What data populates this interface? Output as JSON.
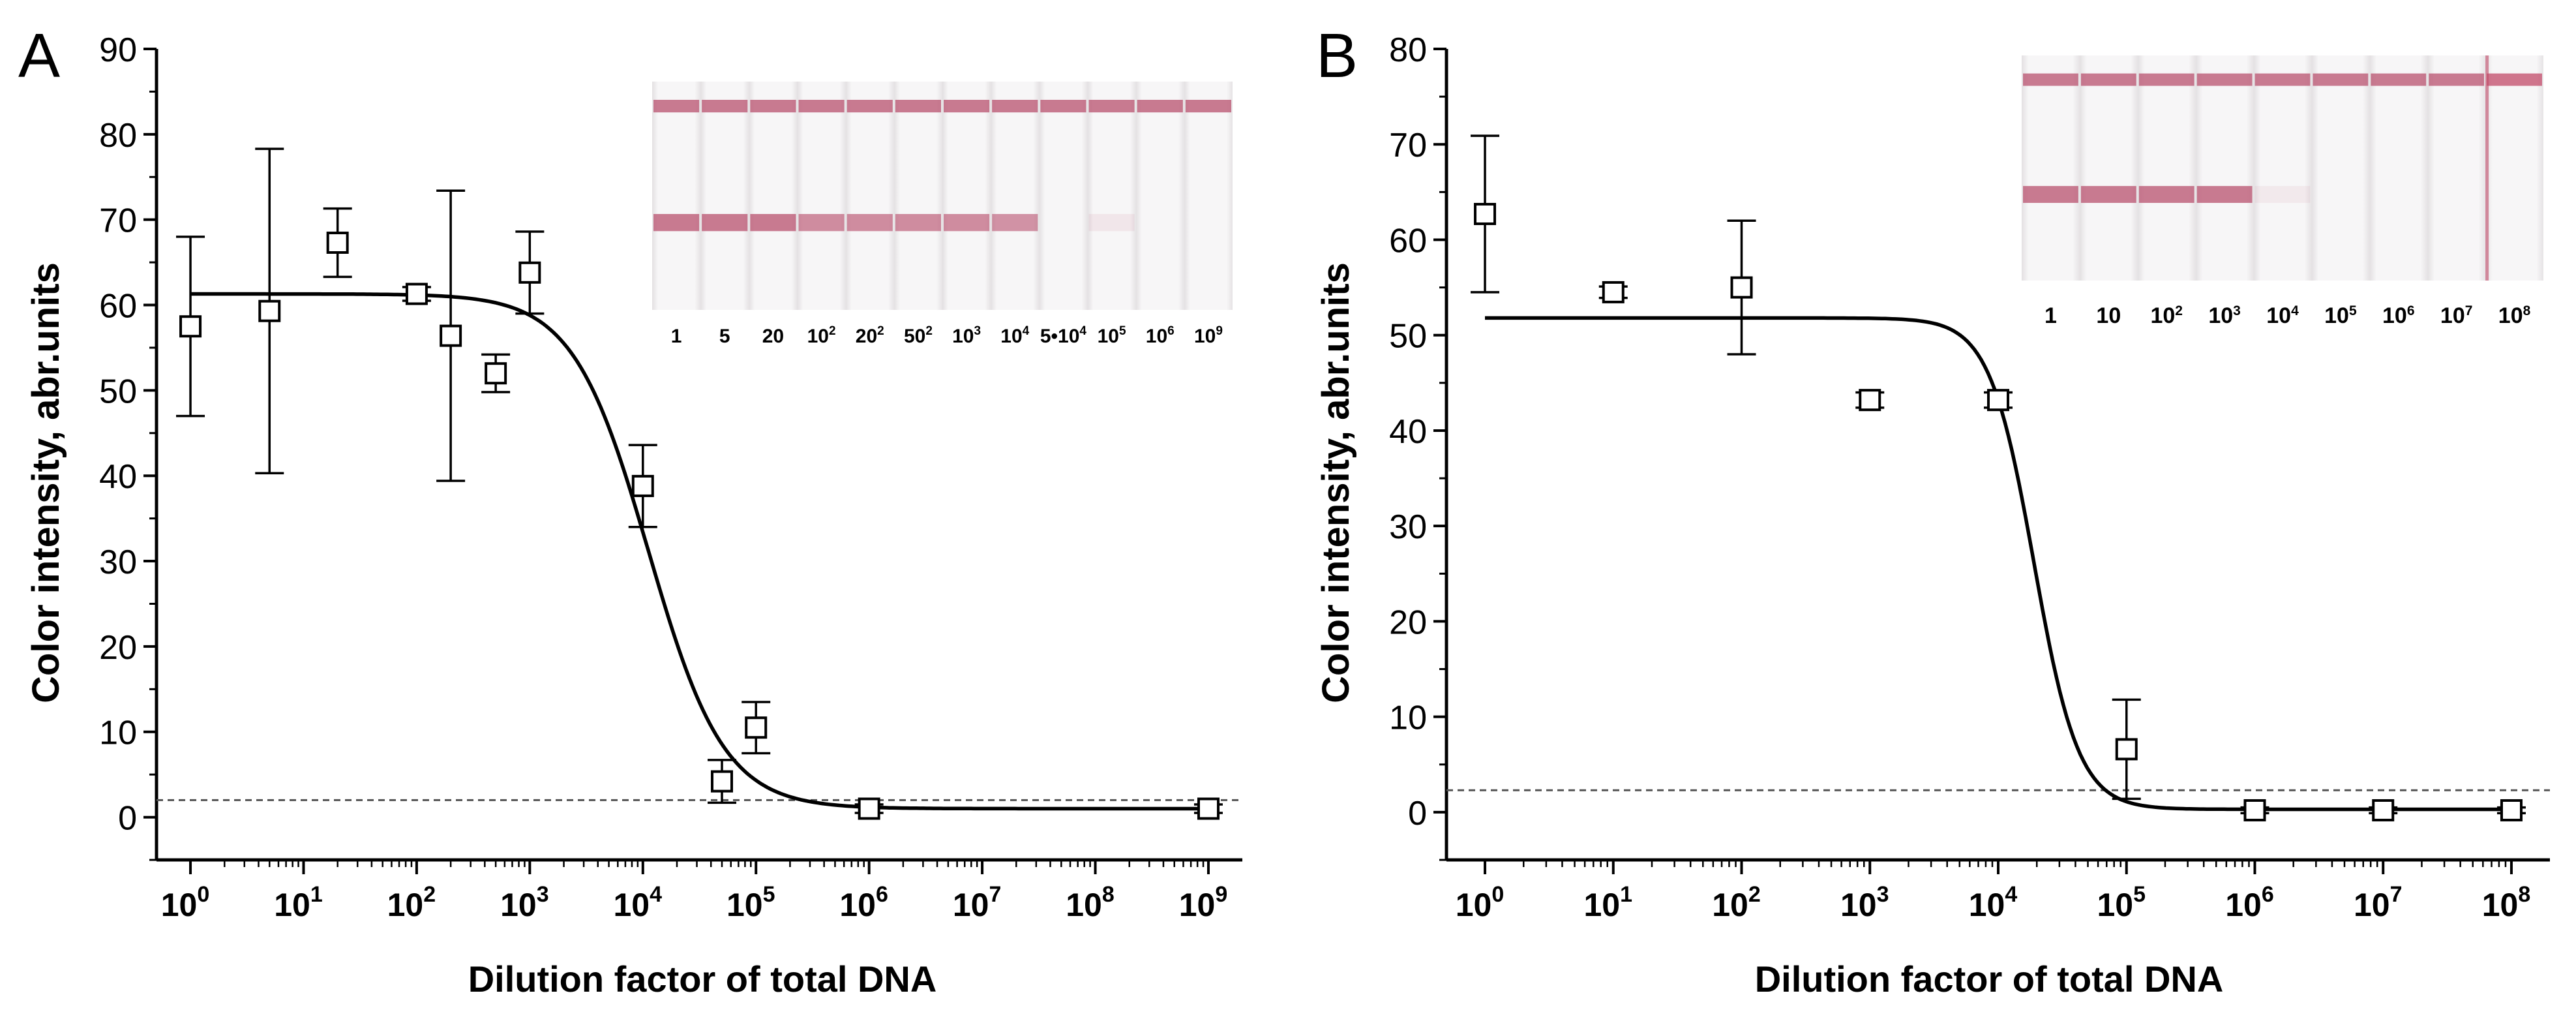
{
  "chart_data": [
    {
      "panel_label": "A",
      "type": "scatter",
      "title": "",
      "xlabel": "Dilution factor of total DNA",
      "ylabel": "Color intensity, abr.units",
      "x_scale": "log10",
      "xlim_log10": [
        -0.3,
        9.3
      ],
      "ylim": [
        -5,
        90
      ],
      "ytick_values": [
        0,
        10,
        20,
        30,
        40,
        50,
        60,
        70,
        80,
        90
      ],
      "ytick_labels": [
        "0",
        "10",
        "20",
        "30",
        "40",
        "50",
        "60",
        "70",
        "80",
        "90"
      ],
      "xtick_exponents": [
        0,
        1,
        2,
        3,
        4,
        5,
        6,
        7,
        8,
        9
      ],
      "xtick_base": "10",
      "points": [
        {
          "x": 1,
          "y": 57.5,
          "err": 10.5
        },
        {
          "x": 5,
          "y": 59.3,
          "err": 19.0
        },
        {
          "x": 20,
          "y": 67.3,
          "err": 4.0
        },
        {
          "x": 100,
          "y": 61.3,
          "err": 0.8
        },
        {
          "x": 200,
          "y": 56.4,
          "err": 17.0
        },
        {
          "x": 500,
          "y": 52.0,
          "err": 2.2
        },
        {
          "x": 1000,
          "y": 63.8,
          "err": 4.8
        },
        {
          "x": 10000,
          "y": 38.8,
          "err": 4.8
        },
        {
          "x": 50000,
          "y": 4.2,
          "err": 2.5
        },
        {
          "x": 100000,
          "y": 10.5,
          "err": 3.0
        },
        {
          "x": 1000000,
          "y": 1.0,
          "err": 0.5
        },
        {
          "x": 1000000000,
          "y": 1.0,
          "err": 0.5
        }
      ],
      "fit": {
        "top": 61.3,
        "bottom": 1.0,
        "log_ec50": 4.05,
        "slope": 1.3
      },
      "threshold": 2.0,
      "inset": {
        "lane_labels": [
          {
            "base": "1",
            "sup": ""
          },
          {
            "base": "5",
            "sup": ""
          },
          {
            "base": "20",
            "sup": ""
          },
          {
            "base": "10",
            "sup": "2"
          },
          {
            "base": "20",
            "sup": "2"
          },
          {
            "base": "50",
            "sup": "2"
          },
          {
            "base": "10",
            "sup": "3"
          },
          {
            "base": "10",
            "sup": "4"
          },
          {
            "base": "5•10",
            "sup": "4"
          },
          {
            "base": "10",
            "sup": "5"
          },
          {
            "base": "10",
            "sup": "6"
          },
          {
            "base": "10",
            "sup": "9"
          }
        ],
        "test_line_intensity": [
          1,
          1,
          1,
          0.85,
          0.85,
          0.85,
          0.85,
          0.8,
          0,
          0.12,
          0,
          0
        ],
        "control_line_intensity": [
          1,
          1,
          1,
          1,
          1,
          1,
          1,
          1,
          1,
          1,
          1,
          1
        ]
      }
    },
    {
      "panel_label": "B",
      "type": "scatter",
      "title": "",
      "xlabel": "Dilution factor of total DNA",
      "ylabel": "Color intensity, abr.units",
      "x_scale": "log10",
      "xlim_log10": [
        -0.3,
        8.3
      ],
      "ylim": [
        -5,
        80
      ],
      "ytick_values": [
        0,
        10,
        20,
        30,
        40,
        50,
        60,
        70,
        80
      ],
      "ytick_labels": [
        "0",
        "10",
        "20",
        "30",
        "40",
        "50",
        "60",
        "70",
        "80"
      ],
      "xtick_exponents": [
        0,
        1,
        2,
        3,
        4,
        5,
        6,
        7,
        8
      ],
      "xtick_base": "10",
      "points": [
        {
          "x": 1,
          "y": 62.7,
          "err": 8.2
        },
        {
          "x": 10,
          "y": 54.5,
          "err": 0.6
        },
        {
          "x": 100,
          "y": 55.0,
          "err": 7.0
        },
        {
          "x": 1000,
          "y": 43.2,
          "err": 0.8
        },
        {
          "x": 10000,
          "y": 43.2,
          "err": 0.8
        },
        {
          "x": 100000,
          "y": 6.6,
          "err": 5.2
        },
        {
          "x": 1000000,
          "y": 0.2,
          "err": 0.3
        },
        {
          "x": 10000000,
          "y": 0.2,
          "err": 0.3
        },
        {
          "x": 100000000,
          "y": 0.2,
          "err": 0.3
        }
      ],
      "fit": {
        "top": 51.8,
        "bottom": 0.3,
        "log_ec50": 4.28,
        "slope": 2.5
      },
      "threshold": 2.3,
      "inset": {
        "lane_labels": [
          {
            "base": "1",
            "sup": ""
          },
          {
            "base": "10",
            "sup": ""
          },
          {
            "base": "10",
            "sup": "2"
          },
          {
            "base": "10",
            "sup": "3"
          },
          {
            "base": "10",
            "sup": "4"
          },
          {
            "base": "10",
            "sup": "5"
          },
          {
            "base": "10",
            "sup": "6"
          },
          {
            "base": "10",
            "sup": "7"
          },
          {
            "base": "10",
            "sup": "8"
          }
        ],
        "test_line_intensity": [
          1,
          1,
          1,
          1,
          0.1,
          0,
          0,
          0,
          0
        ],
        "control_line_intensity": [
          1,
          1,
          1,
          1,
          1,
          1,
          1,
          1,
          1
        ]
      }
    }
  ],
  "colors": {
    "axis": "#000000",
    "curve": "#000000",
    "threshold": "#555555",
    "strip_background": "#f2f0f1",
    "band": "#b8506e",
    "band_b_control": "#c24a68"
  }
}
